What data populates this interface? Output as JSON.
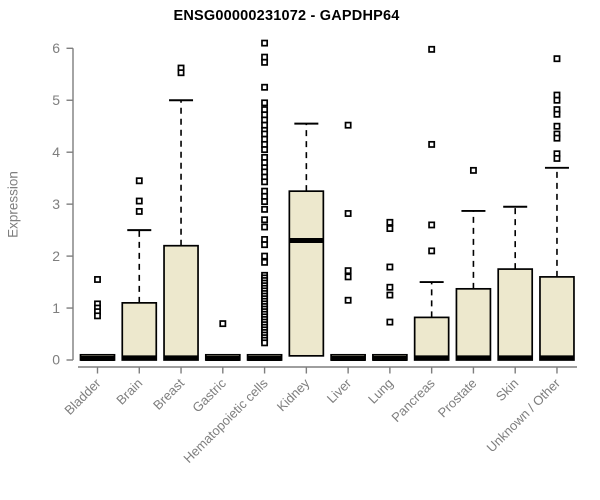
{
  "colors": {
    "box_fill": "#EDE8CD",
    "box_stroke": "#000000",
    "axis": "#7e7e7e",
    "tick_label": "#7e7e7e",
    "title": "#000000",
    "background": "#ffffff"
  },
  "chart_data": {
    "type": "boxplot",
    "title": "ENSG00000231072 - GAPDHP64",
    "xlabel": "",
    "ylabel": "Expression",
    "ylim": [
      0,
      6
    ],
    "yticks": [
      0,
      1,
      2,
      3,
      4,
      5,
      6
    ],
    "grid": false,
    "legend": false,
    "categories": [
      "Bladder",
      "Brain",
      "Breast",
      "Gastric",
      "Hematopoietic cells",
      "Kidney",
      "Liver",
      "Lung",
      "Pancreas",
      "Prostate",
      "Skin",
      "Unknown / Other"
    ],
    "boxes": [
      {
        "category": "Bladder",
        "q1": 0,
        "median": 0.03,
        "q3": 0.1,
        "whisker_low": null,
        "whisker_high": null,
        "outliers": [
          1.55,
          1.08,
          1.0,
          0.93,
          0.85
        ]
      },
      {
        "category": "Brain",
        "q1": 0,
        "median": 0.04,
        "q3": 1.1,
        "whisker_low": null,
        "whisker_high": 2.5,
        "outliers": [
          3.45,
          3.06,
          2.86
        ]
      },
      {
        "category": "Breast",
        "q1": 0,
        "median": 0.04,
        "q3": 2.2,
        "whisker_low": null,
        "whisker_high": 5.0,
        "outliers": [
          5.62,
          5.53
        ]
      },
      {
        "category": "Gastric",
        "q1": 0,
        "median": 0.03,
        "q3": 0.1,
        "whisker_low": null,
        "whisker_high": null,
        "outliers": [
          0.7
        ]
      },
      {
        "category": "Hematopoietic cells",
        "q1": 0,
        "median": 0.03,
        "q3": 0.1,
        "whisker_low": null,
        "whisker_high": null,
        "outliers": [
          6.1,
          5.83,
          5.73,
          5.25,
          4.95,
          4.82,
          4.72,
          4.62,
          4.52,
          4.42,
          4.35,
          4.25,
          4.15,
          4.05,
          3.9,
          3.8,
          3.7,
          3.62,
          3.52,
          3.43,
          3.25,
          3.15,
          3.05,
          2.9,
          2.7,
          2.56,
          2.32,
          2.22,
          2.0,
          1.88,
          1.63,
          1.58,
          1.53,
          1.48,
          1.43,
          1.38,
          1.33,
          1.28,
          1.23,
          1.18,
          1.13,
          1.08,
          1.03,
          0.98,
          0.93,
          0.88,
          0.83,
          0.78,
          0.73,
          0.68,
          0.63,
          0.58,
          0.53,
          0.48,
          0.43,
          0.38,
          0.33
        ]
      },
      {
        "category": "Kidney",
        "q1": 0.08,
        "median": 2.3,
        "q3": 3.25,
        "whisker_low": null,
        "whisker_high": 4.55,
        "outliers": []
      },
      {
        "category": "Liver",
        "q1": 0,
        "median": 0.03,
        "q3": 0.1,
        "whisker_low": null,
        "whisker_high": null,
        "outliers": [
          4.52,
          2.82,
          1.72,
          1.6,
          1.15
        ]
      },
      {
        "category": "Lung",
        "q1": 0,
        "median": 0.03,
        "q3": 0.1,
        "whisker_low": null,
        "whisker_high": null,
        "outliers": [
          2.65,
          2.53,
          1.79,
          1.4,
          1.25,
          0.73
        ]
      },
      {
        "category": "Pancreas",
        "q1": 0,
        "median": 0.04,
        "q3": 0.82,
        "whisker_low": null,
        "whisker_high": 1.5,
        "outliers": [
          5.98,
          4.15,
          2.6,
          2.1
        ]
      },
      {
        "category": "Prostate",
        "q1": 0,
        "median": 0.04,
        "q3": 1.37,
        "whisker_low": null,
        "whisker_high": 2.87,
        "outliers": [
          3.65
        ]
      },
      {
        "category": "Skin",
        "q1": 0,
        "median": 0.04,
        "q3": 1.75,
        "whisker_low": null,
        "whisker_high": 2.95,
        "outliers": []
      },
      {
        "category": "Unknown / Other",
        "q1": 0,
        "median": 0.04,
        "q3": 1.6,
        "whisker_low": null,
        "whisker_high": 3.7,
        "outliers": [
          5.8,
          5.1,
          5.0,
          4.82,
          4.73,
          4.5,
          4.35,
          4.27,
          3.97,
          3.88
        ]
      }
    ]
  }
}
